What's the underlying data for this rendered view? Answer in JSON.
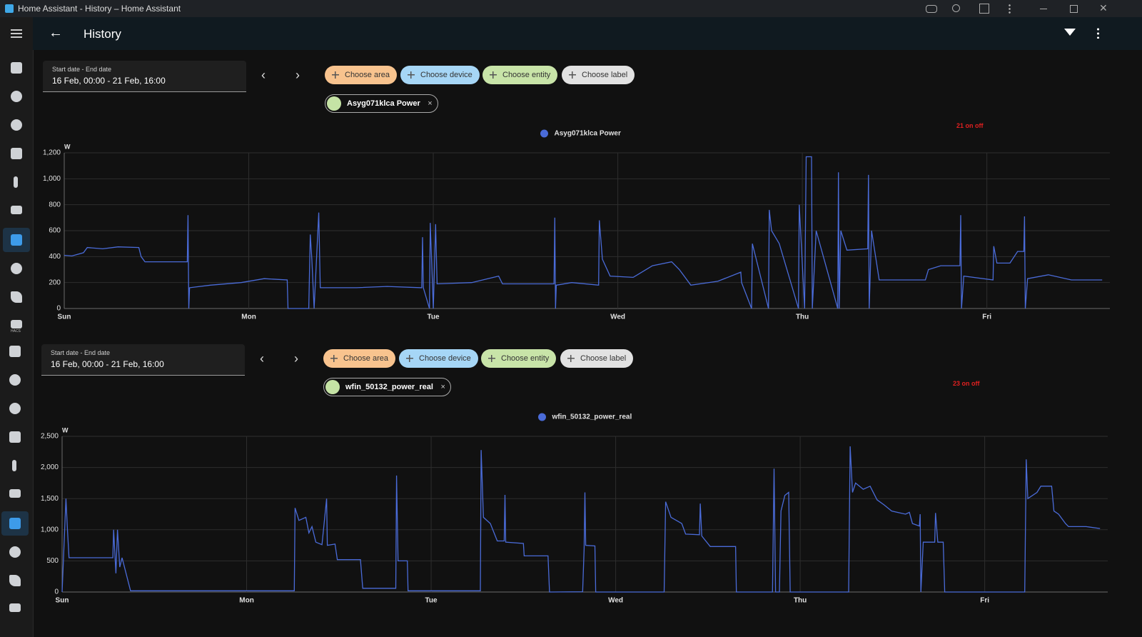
{
  "window_title": "Home Assistant - History – Home Assistant",
  "header": {
    "title": "History"
  },
  "sidebar": {
    "hacs_label": "HACS"
  },
  "panels": [
    {
      "date_label": "Start date - End date",
      "date_range": "16 Feb, 00:00 - 21 Feb, 16:00",
      "chips": [
        "Choose area",
        "Choose device",
        "Choose entity",
        "Choose label"
      ],
      "status": "21 on off"
    },
    {
      "date_label": "Start date - End date",
      "date_range": "16 Feb, 00:00 - 21 Feb, 16:00",
      "chips": [
        "Choose area",
        "Choose device",
        "Choose entity",
        "Choose label"
      ],
      "status": "23 on off"
    }
  ],
  "chart_data": [
    {
      "type": "line",
      "y_label": "W",
      "grid": true,
      "x": [
        0,
        1,
        2.5,
        3,
        5,
        7,
        9.7,
        10,
        10.5,
        16,
        16.1,
        16.2,
        16.3,
        19,
        23,
        26,
        29,
        29.1,
        31.8,
        32,
        32.2,
        32.5,
        33.1,
        33.3,
        38,
        42,
        46.5,
        46.6,
        46.7,
        47.5,
        47.6,
        48,
        48.3,
        48.5,
        53,
        56.5,
        57,
        63.7,
        63.8,
        63.9,
        64,
        66,
        69.5,
        69.6,
        70,
        71,
        74,
        76.5,
        79,
        80,
        81.5,
        85,
        88,
        88.1,
        89.4,
        89.5,
        91.6,
        91.7,
        92,
        93,
        95.5,
        95.6,
        96.3,
        96.5,
        97.2,
        97.3,
        97.8,
        100.6,
        100.7,
        100.8,
        101,
        101.8,
        104.5,
        104.6,
        104.7,
        105,
        106,
        112,
        112.4,
        114,
        116.5,
        116.6,
        116.7,
        117,
        120.8,
        120.9,
        121.3,
        123,
        124,
        124.8,
        124.9,
        125,
        125.3,
        128,
        131,
        135
      ],
      "series": [
        {
          "name": "Asyg071klca Power",
          "color": "#4a6bd8",
          "values": [
            410,
            405,
            430,
            470,
            460,
            475,
            470,
            400,
            360,
            360,
            720,
            0,
            160,
            180,
            200,
            230,
            220,
            0,
            0,
            570,
            380,
            0,
            740,
            160,
            160,
            170,
            160,
            550,
            160,
            0,
            660,
            0,
            650,
            190,
            200,
            250,
            190,
            190,
            700,
            0,
            180,
            200,
            180,
            680,
            380,
            250,
            240,
            330,
            360,
            300,
            180,
            210,
            280,
            200,
            0,
            500,
            0,
            760,
            600,
            500,
            0,
            800,
            0,
            1170,
            1170,
            0,
            600,
            0,
            1050,
            0,
            600,
            450,
            460,
            1030,
            0,
            600,
            220,
            220,
            300,
            330,
            330,
            720,
            0,
            250,
            220,
            480,
            350,
            350,
            440,
            440,
            710,
            0,
            230,
            260,
            220,
            220
          ]
        }
      ],
      "xlim": [
        0,
        136
      ],
      "xticks": [
        {
          "value": 0,
          "label": "Sun"
        },
        {
          "value": 24,
          "label": "Mon"
        },
        {
          "value": 48,
          "label": "Tue"
        },
        {
          "value": 72,
          "label": "Wed"
        },
        {
          "value": 96,
          "label": "Thu"
        },
        {
          "value": 120,
          "label": "Fri"
        }
      ],
      "ylim": [
        0,
        1200
      ],
      "yticks": [
        0,
        200,
        400,
        600,
        800,
        {
          "value": 1000,
          "label": "1,000"
        },
        {
          "value": 1200,
          "label": "1,200"
        }
      ]
    },
    {
      "type": "line",
      "y_label": "W",
      "grid": true,
      "x": [
        0,
        0.5,
        0.7,
        0.9,
        6.6,
        6.7,
        7,
        7.2,
        7.5,
        7.8,
        8.9,
        30.2,
        30.3,
        30.8,
        31.7,
        32.1,
        32.5,
        33,
        33.8,
        34.4,
        34.5,
        35.5,
        35.8,
        38.8,
        39.1,
        43.4,
        43.5,
        43.7,
        44.9,
        45,
        54.4,
        54.5,
        54.8,
        55.7,
        56.6,
        57.5,
        57.6,
        57.7,
        60,
        60.1,
        63.2,
        63.4,
        67.7,
        67.9,
        68,
        68.1,
        69.3,
        69.4,
        78.3,
        78.5,
        79.2,
        80.6,
        81.1,
        82.9,
        83,
        83.2,
        84.3,
        87.6,
        87.7,
        92.4,
        92.6,
        92.8,
        93.3,
        93.5,
        94,
        94.5,
        94.7,
        102.3,
        102.5,
        102.8,
        103.2,
        104.2,
        105.1,
        106,
        106.9,
        107.9,
        109.7,
        110.2,
        110.6,
        111.5,
        111.6,
        111.7,
        112,
        113.5,
        113.6,
        113.9,
        114.6,
        114.8,
        125.2,
        125.4,
        125.6,
        126.8,
        127.3,
        128.7,
        129,
        129.6,
        130.5,
        130.9,
        133.2,
        135
      ],
      "series": [
        {
          "name": "wfin_50132_power_real",
          "color": "#4a6bd8",
          "values": [
            0,
            1500,
            1000,
            550,
            550,
            1000,
            300,
            1000,
            400,
            550,
            20,
            20,
            1350,
            1150,
            1200,
            950,
            1050,
            800,
            760,
            1500,
            750,
            770,
            520,
            520,
            60,
            60,
            1870,
            500,
            500,
            20,
            20,
            2280,
            1200,
            1100,
            820,
            820,
            1560,
            800,
            780,
            580,
            580,
            0,
            5,
            700,
            1600,
            750,
            740,
            0,
            0,
            1450,
            1200,
            1100,
            930,
            920,
            1420,
            900,
            730,
            730,
            0,
            0,
            1980,
            0,
            0,
            1300,
            1550,
            1600,
            0,
            0,
            2340,
            1600,
            1750,
            1650,
            1700,
            1480,
            1400,
            1300,
            1250,
            1280,
            1100,
            1060,
            1250,
            0,
            800,
            800,
            1270,
            800,
            800,
            0,
            0,
            2130,
            1500,
            1600,
            1700,
            1700,
            1300,
            1250,
            1100,
            1050,
            1050,
            1020
          ]
        }
      ],
      "xlim": [
        0,
        136
      ],
      "xticks": [
        {
          "value": 0,
          "label": "Sun"
        },
        {
          "value": 24,
          "label": "Mon"
        },
        {
          "value": 48,
          "label": "Tue"
        },
        {
          "value": 72,
          "label": "Wed"
        },
        {
          "value": 96,
          "label": "Thu"
        },
        {
          "value": 120,
          "label": "Fri"
        }
      ],
      "ylim": [
        0,
        2500
      ],
      "yticks": [
        0,
        500,
        {
          "value": 1000,
          "label": "1,000"
        },
        {
          "value": 1500,
          "label": "1,500"
        },
        {
          "value": 2000,
          "label": "2,000"
        },
        {
          "value": 2500,
          "label": "2,500"
        }
      ]
    }
  ]
}
